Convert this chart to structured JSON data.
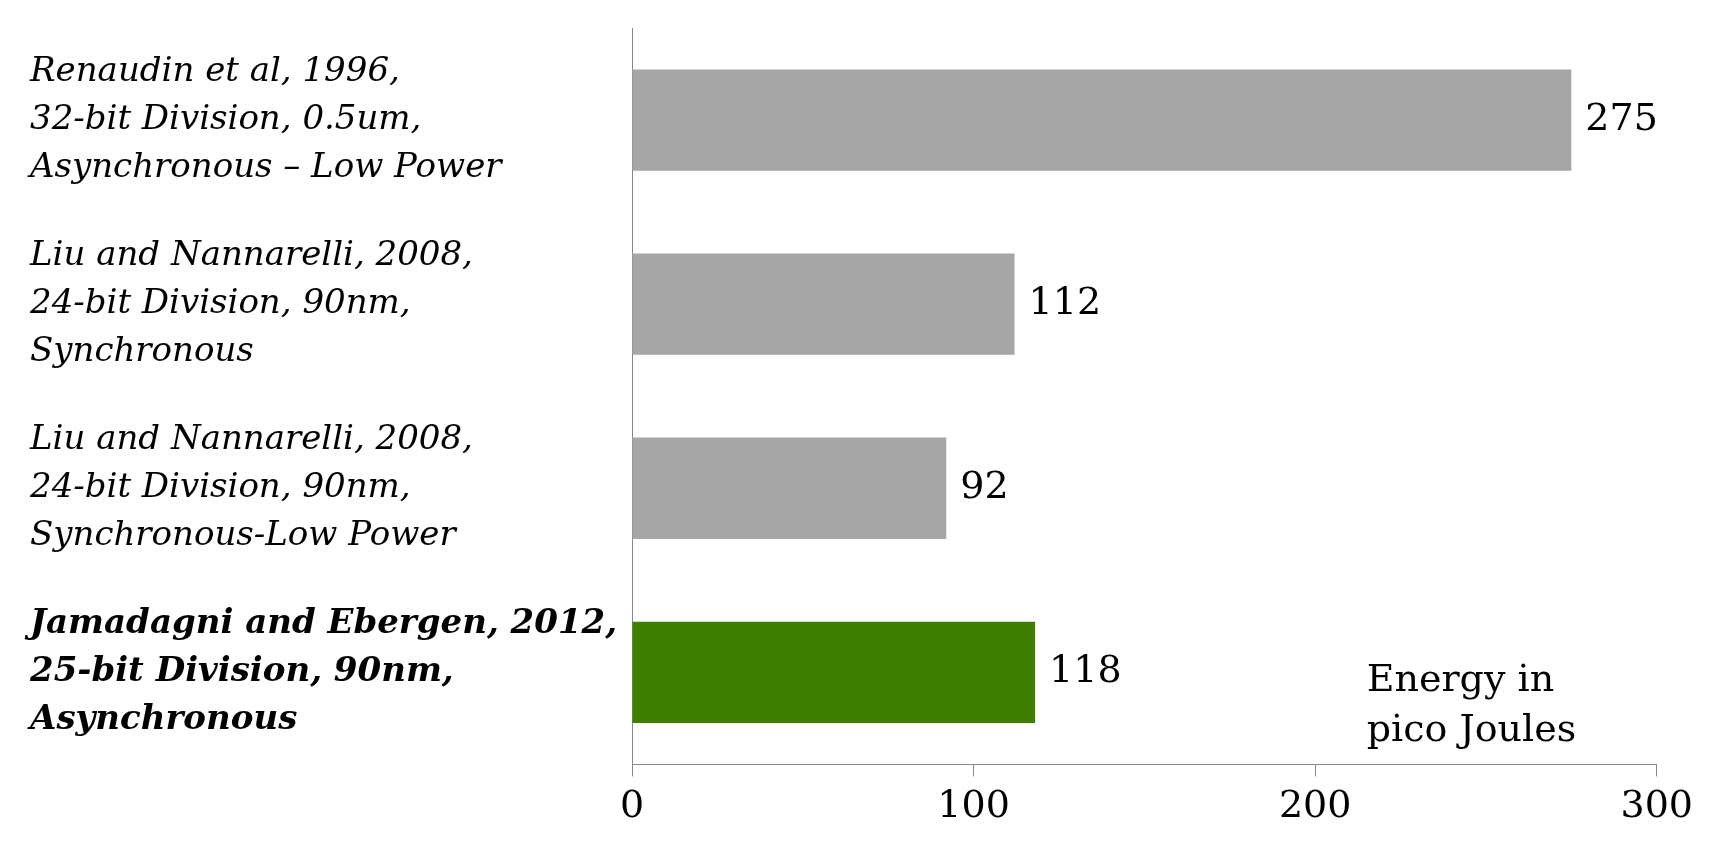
{
  "chart_data": {
    "type": "bar",
    "orientation": "horizontal",
    "xlabel": "Energy in\npico Joules",
    "categories": [
      "Renaudin et al, 1996,\n32-bit Division, 0.5um,\nAsynchronous – Low Power",
      "Liu and Nannarelli, 2008,\n24-bit Division, 90nm,\nSynchronous",
      "Liu and Nannarelli, 2008,\n24-bit Division, 90nm,\nSynchronous-Low Power",
      "Jamadagni and Ebergen, 2012,\n25-bit Division, 90nm,\nAsynchronous"
    ],
    "values": [
      275,
      112,
      92,
      118
    ],
    "colors": [
      "#a6a6a6",
      "#a6a6a6",
      "#a6a6a6",
      "#3f7f00"
    ],
    "xlim": [
      0,
      300
    ],
    "xticks": [
      0,
      100,
      200,
      300
    ],
    "grid": false,
    "legend": false,
    "data_labels": true
  }
}
